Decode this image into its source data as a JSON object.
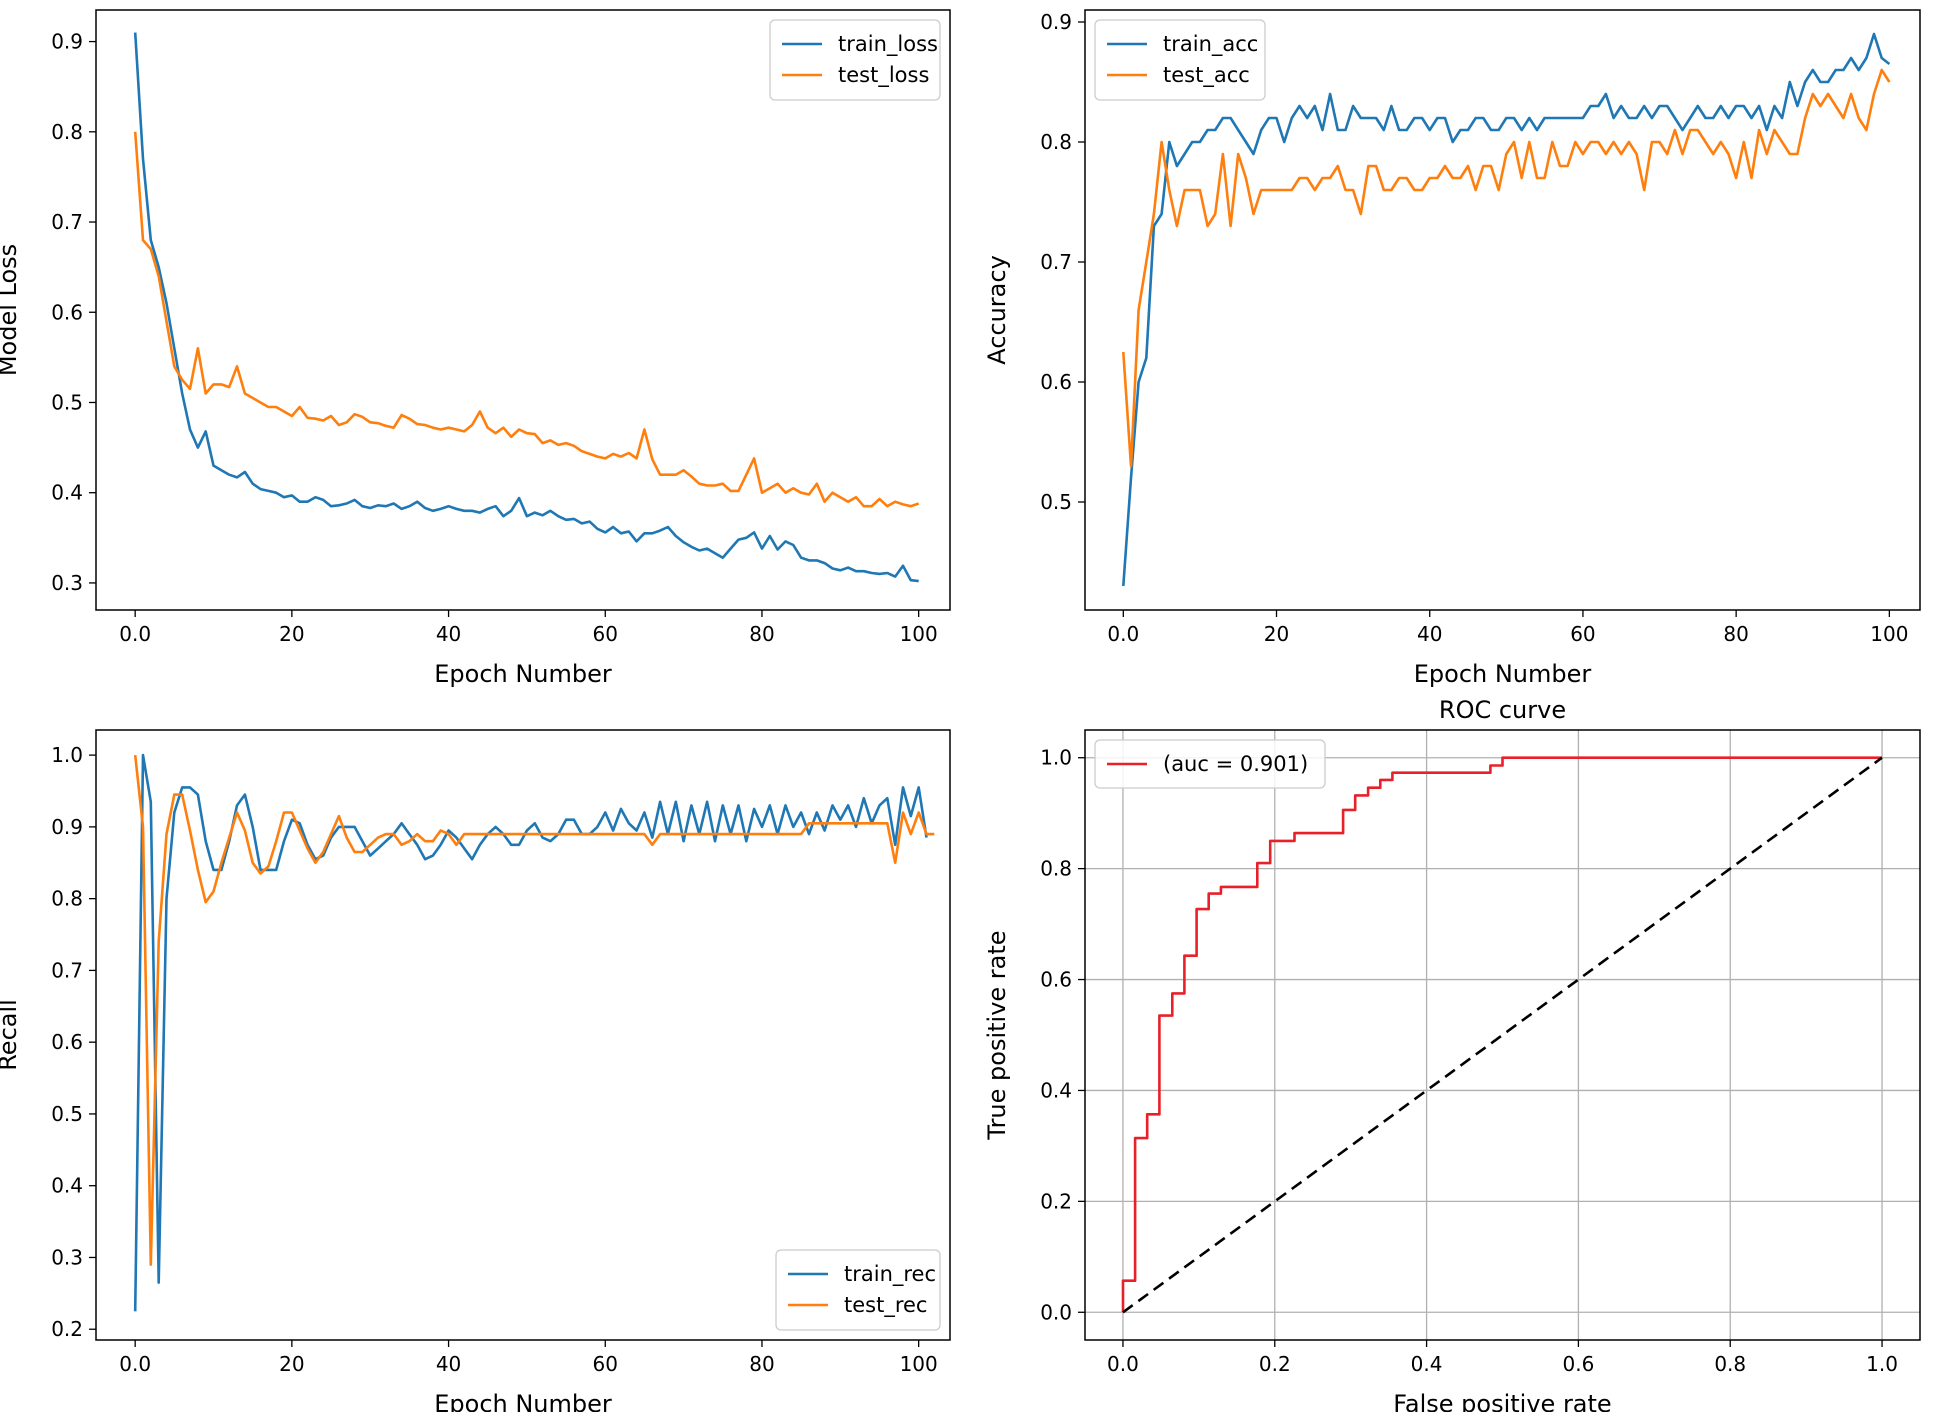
{
  "colors": {
    "blue": "#1f77b4",
    "orange": "#ff7f0e",
    "red": "#e8202a",
    "dash": "#000000"
  },
  "chart_data": [
    {
      "type": "line",
      "title": "",
      "xlabel": "Epoch Number",
      "ylabel": "Model Loss",
      "xlim": [
        -5,
        104
      ],
      "ylim": [
        0.27,
        0.935
      ],
      "xticks": [
        0,
        20,
        40,
        60,
        80,
        100
      ],
      "yticks": [
        0.3,
        0.4,
        0.5,
        0.6,
        0.7,
        0.8,
        0.9
      ],
      "grid": false,
      "legend_loc": "top-right",
      "series": [
        {
          "name": "train_loss",
          "color": "#1f77b4",
          "values": [
            0.91,
            0.77,
            0.68,
            0.65,
            0.61,
            0.56,
            0.51,
            0.47,
            0.45,
            0.468,
            0.43,
            0.425,
            0.42,
            0.417,
            0.423,
            0.41,
            0.404,
            0.402,
            0.4,
            0.395,
            0.397,
            0.39,
            0.39,
            0.395,
            0.392,
            0.385,
            0.386,
            0.388,
            0.392,
            0.385,
            0.383,
            0.386,
            0.385,
            0.388,
            0.382,
            0.385,
            0.39,
            0.383,
            0.38,
            0.382,
            0.385,
            0.382,
            0.38,
            0.38,
            0.378,
            0.382,
            0.385,
            0.374,
            0.38,
            0.394,
            0.374,
            0.378,
            0.375,
            0.38,
            0.374,
            0.37,
            0.371,
            0.366,
            0.368,
            0.36,
            0.356,
            0.362,
            0.355,
            0.357,
            0.346,
            0.355,
            0.355,
            0.358,
            0.362,
            0.352,
            0.345,
            0.34,
            0.336,
            0.338,
            0.333,
            0.328,
            0.338,
            0.348,
            0.35,
            0.356,
            0.338,
            0.352,
            0.337,
            0.346,
            0.342,
            0.328,
            0.325,
            0.325,
            0.322,
            0.316,
            0.314,
            0.317,
            0.313,
            0.313,
            0.311,
            0.31,
            0.311,
            0.307,
            0.319,
            0.303,
            0.302
          ]
        },
        {
          "name": "test_loss",
          "color": "#ff7f0e",
          "values": [
            0.8,
            0.68,
            0.67,
            0.64,
            0.59,
            0.54,
            0.525,
            0.515,
            0.56,
            0.51,
            0.52,
            0.52,
            0.517,
            0.54,
            0.51,
            0.505,
            0.5,
            0.495,
            0.495,
            0.49,
            0.485,
            0.495,
            0.483,
            0.482,
            0.48,
            0.485,
            0.475,
            0.478,
            0.487,
            0.484,
            0.478,
            0.477,
            0.474,
            0.472,
            0.486,
            0.482,
            0.476,
            0.475,
            0.472,
            0.47,
            0.472,
            0.47,
            0.468,
            0.475,
            0.49,
            0.472,
            0.466,
            0.472,
            0.462,
            0.47,
            0.466,
            0.465,
            0.455,
            0.458,
            0.453,
            0.455,
            0.452,
            0.446,
            0.443,
            0.44,
            0.438,
            0.443,
            0.44,
            0.444,
            0.438,
            0.47,
            0.437,
            0.42,
            0.42,
            0.42,
            0.425,
            0.418,
            0.41,
            0.408,
            0.408,
            0.41,
            0.402,
            0.402,
            0.42,
            0.438,
            0.4,
            0.405,
            0.41,
            0.4,
            0.405,
            0.4,
            0.398,
            0.41,
            0.39,
            0.4,
            0.395,
            0.39,
            0.395,
            0.385,
            0.385,
            0.393,
            0.385,
            0.39,
            0.387,
            0.385,
            0.388
          ]
        }
      ]
    },
    {
      "type": "line",
      "title": "",
      "xlabel": "Epoch Number",
      "ylabel": "Accuracy",
      "xlim": [
        -5,
        104
      ],
      "ylim": [
        0.41,
        0.91
      ],
      "xticks": [
        0,
        20,
        40,
        60,
        80,
        100
      ],
      "yticks": [
        0.5,
        0.6,
        0.7,
        0.8,
        0.9
      ],
      "grid": false,
      "legend_loc": "top-left",
      "series": [
        {
          "name": "train_acc",
          "color": "#1f77b4",
          "values": [
            0.43,
            0.52,
            0.6,
            0.62,
            0.73,
            0.74,
            0.8,
            0.78,
            0.79,
            0.8,
            0.8,
            0.81,
            0.81,
            0.82,
            0.82,
            0.81,
            0.8,
            0.79,
            0.81,
            0.82,
            0.82,
            0.8,
            0.82,
            0.83,
            0.82,
            0.83,
            0.81,
            0.84,
            0.81,
            0.81,
            0.83,
            0.82,
            0.82,
            0.82,
            0.81,
            0.83,
            0.81,
            0.81,
            0.82,
            0.82,
            0.81,
            0.82,
            0.82,
            0.8,
            0.81,
            0.81,
            0.82,
            0.82,
            0.81,
            0.81,
            0.82,
            0.82,
            0.81,
            0.82,
            0.81,
            0.82,
            0.82,
            0.82,
            0.82,
            0.82,
            0.82,
            0.83,
            0.83,
            0.84,
            0.82,
            0.83,
            0.82,
            0.82,
            0.83,
            0.82,
            0.83,
            0.83,
            0.82,
            0.81,
            0.82,
            0.83,
            0.82,
            0.82,
            0.83,
            0.82,
            0.83,
            0.83,
            0.82,
            0.83,
            0.81,
            0.83,
            0.82,
            0.85,
            0.83,
            0.85,
            0.86,
            0.85,
            0.85,
            0.86,
            0.86,
            0.87,
            0.86,
            0.87,
            0.89,
            0.87,
            0.865
          ]
        },
        {
          "name": "test_acc",
          "color": "#ff7f0e",
          "values": [
            0.625,
            0.53,
            0.66,
            0.7,
            0.74,
            0.8,
            0.76,
            0.73,
            0.76,
            0.76,
            0.76,
            0.73,
            0.74,
            0.79,
            0.73,
            0.79,
            0.77,
            0.74,
            0.76,
            0.76,
            0.76,
            0.76,
            0.76,
            0.77,
            0.77,
            0.76,
            0.77,
            0.77,
            0.78,
            0.76,
            0.76,
            0.74,
            0.78,
            0.78,
            0.76,
            0.76,
            0.77,
            0.77,
            0.76,
            0.76,
            0.77,
            0.77,
            0.78,
            0.77,
            0.77,
            0.78,
            0.76,
            0.78,
            0.78,
            0.76,
            0.79,
            0.8,
            0.77,
            0.8,
            0.77,
            0.77,
            0.8,
            0.78,
            0.78,
            0.8,
            0.79,
            0.8,
            0.8,
            0.79,
            0.8,
            0.79,
            0.8,
            0.79,
            0.76,
            0.8,
            0.8,
            0.79,
            0.81,
            0.79,
            0.81,
            0.81,
            0.8,
            0.79,
            0.8,
            0.79,
            0.77,
            0.8,
            0.77,
            0.81,
            0.79,
            0.81,
            0.8,
            0.79,
            0.79,
            0.82,
            0.84,
            0.83,
            0.84,
            0.83,
            0.82,
            0.84,
            0.82,
            0.81,
            0.84,
            0.86,
            0.85
          ]
        }
      ]
    },
    {
      "type": "line",
      "title": "",
      "xlabel": "Epoch Number",
      "ylabel": "Recall",
      "xlim": [
        -5,
        104
      ],
      "ylim": [
        0.185,
        1.035
      ],
      "xticks": [
        0,
        20,
        40,
        60,
        80,
        100
      ],
      "yticks": [
        0.2,
        0.3,
        0.4,
        0.5,
        0.6,
        0.7,
        0.8,
        0.9,
        1.0
      ],
      "grid": false,
      "legend_loc": "bottom-right",
      "series": [
        {
          "name": "train_rec",
          "color": "#1f77b4",
          "values": [
            0.225,
            1.0,
            0.935,
            0.265,
            0.8,
            0.92,
            0.955,
            0.955,
            0.945,
            0.88,
            0.84,
            0.84,
            0.88,
            0.93,
            0.945,
            0.9,
            0.84,
            0.84,
            0.84,
            0.88,
            0.91,
            0.905,
            0.875,
            0.855,
            0.86,
            0.885,
            0.9,
            0.9,
            0.9,
            0.88,
            0.86,
            0.87,
            0.88,
            0.89,
            0.905,
            0.89,
            0.875,
            0.855,
            0.86,
            0.875,
            0.895,
            0.885,
            0.87,
            0.855,
            0.875,
            0.89,
            0.9,
            0.89,
            0.875,
            0.875,
            0.895,
            0.905,
            0.885,
            0.88,
            0.89,
            0.91,
            0.91,
            0.89,
            0.89,
            0.9,
            0.92,
            0.895,
            0.925,
            0.905,
            0.895,
            0.92,
            0.885,
            0.935,
            0.89,
            0.935,
            0.88,
            0.93,
            0.89,
            0.935,
            0.88,
            0.93,
            0.89,
            0.93,
            0.88,
            0.925,
            0.9,
            0.93,
            0.89,
            0.93,
            0.9,
            0.92,
            0.89,
            0.92,
            0.895,
            0.93,
            0.91,
            0.93,
            0.9,
            0.94,
            0.905,
            0.93,
            0.94,
            0.875,
            0.955,
            0.915,
            0.955,
            0.885
          ]
        },
        {
          "name": "test_rec",
          "color": "#ff7f0e",
          "values": [
            1.0,
            0.9,
            0.29,
            0.74,
            0.89,
            0.945,
            0.945,
            0.895,
            0.84,
            0.795,
            0.81,
            0.85,
            0.885,
            0.92,
            0.895,
            0.85,
            0.835,
            0.845,
            0.88,
            0.92,
            0.92,
            0.895,
            0.87,
            0.85,
            0.865,
            0.89,
            0.915,
            0.885,
            0.865,
            0.865,
            0.875,
            0.885,
            0.89,
            0.89,
            0.875,
            0.88,
            0.89,
            0.88,
            0.88,
            0.895,
            0.89,
            0.875,
            0.89,
            0.89,
            0.89,
            0.89,
            0.89,
            0.89,
            0.89,
            0.89,
            0.89,
            0.89,
            0.89,
            0.89,
            0.89,
            0.89,
            0.89,
            0.89,
            0.89,
            0.89,
            0.89,
            0.89,
            0.89,
            0.89,
            0.89,
            0.89,
            0.875,
            0.89,
            0.89,
            0.89,
            0.89,
            0.89,
            0.89,
            0.89,
            0.89,
            0.89,
            0.89,
            0.89,
            0.89,
            0.89,
            0.89,
            0.89,
            0.89,
            0.89,
            0.89,
            0.89,
            0.905,
            0.905,
            0.905,
            0.905,
            0.905,
            0.905,
            0.905,
            0.905,
            0.905,
            0.905,
            0.905,
            0.85,
            0.92,
            0.89,
            0.92,
            0.89,
            0.89
          ]
        }
      ]
    },
    {
      "type": "line",
      "title": "ROC curve",
      "xlabel": "False positive rate",
      "ylabel": "True positive rate",
      "xlim": [
        -0.05,
        1.05
      ],
      "ylim": [
        -0.05,
        1.05
      ],
      "xticks": [
        0.0,
        0.2,
        0.4,
        0.6,
        0.8,
        1.0
      ],
      "yticks": [
        0.0,
        0.2,
        0.4,
        0.6,
        0.8,
        1.0
      ],
      "grid": true,
      "legend_loc": "top-left",
      "series": [
        {
          "name": "(auc = 0.901)",
          "color": "#e8202a",
          "x": [
            0,
            0,
            0.016,
            0.016,
            0.032,
            0.032,
            0.048,
            0.048,
            0.065,
            0.065,
            0.081,
            0.081,
            0.097,
            0.097,
            0.113,
            0.113,
            0.129,
            0.129,
            0.177,
            0.177,
            0.194,
            0.194,
            0.226,
            0.226,
            0.29,
            0.29,
            0.306,
            0.306,
            0.323,
            0.323,
            0.339,
            0.339,
            0.355,
            0.355,
            0.484,
            0.484,
            0.5,
            0.5,
            1.0
          ],
          "y": [
            0,
            0.057,
            0.057,
            0.314,
            0.314,
            0.357,
            0.357,
            0.535,
            0.535,
            0.575,
            0.575,
            0.643,
            0.643,
            0.727,
            0.727,
            0.755,
            0.755,
            0.767,
            0.767,
            0.81,
            0.81,
            0.85,
            0.85,
            0.864,
            0.864,
            0.906,
            0.906,
            0.932,
            0.932,
            0.946,
            0.946,
            0.96,
            0.96,
            0.973,
            0.973,
            0.986,
            0.986,
            1.0,
            1.0
          ]
        },
        {
          "name": "",
          "color": "#000000",
          "dashed": true,
          "x": [
            0,
            1
          ],
          "y": [
            0,
            1
          ]
        }
      ]
    }
  ]
}
